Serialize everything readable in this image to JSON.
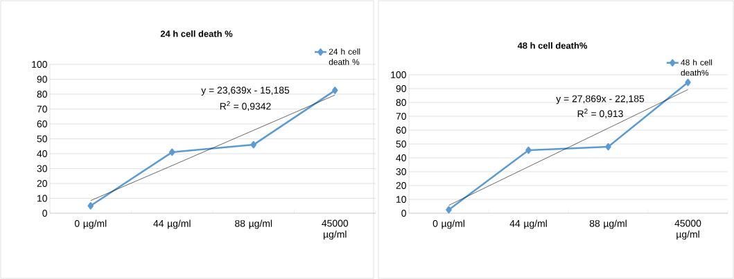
{
  "chart_data": [
    {
      "type": "line",
      "title": "24 h cell death %",
      "categories": [
        "0  µg/ml",
        "44 µg/ml",
        "88 µg/ml",
        "45000 µg/ml"
      ],
      "series": [
        {
          "name": "24 h cell death %",
          "color": "#5b9bd5",
          "values": [
            5,
            41,
            46,
            82.5
          ]
        },
        {
          "color": "#000000",
          "values": [
            8.5,
            32,
            55.7,
            79.4
          ],
          "marker": "none"
        }
      ],
      "ylim": [
        0,
        100
      ],
      "yticks": [
        0,
        10,
        20,
        30,
        40,
        50,
        60,
        70,
        80,
        90,
        100
      ],
      "grid": "y",
      "legend": "top right",
      "marker": "diamond",
      "annotations": [
        "y = 23,639x - 15,185",
        "R$^{2}$ = 0,9342"
      ]
    },
    {
      "type": "line",
      "title": "48 h cell death%",
      "categories": [
        "0  µg/ml",
        "44 µg/ml",
        "88 µg/ml",
        "45000 µg/ml"
      ],
      "series": [
        {
          "name": "48 h cell death%",
          "color": "#5b9bd5",
          "values": [
            2.5,
            45.5,
            48,
            94.5
          ]
        },
        {
          "color": "#000000",
          "values": [
            5.7,
            33.6,
            61.4,
            89.3
          ],
          "marker": "none"
        }
      ],
      "ylim": [
        0,
        100
      ],
      "yticks": [
        0,
        10,
        20,
        30,
        40,
        50,
        60,
        70,
        80,
        90,
        100
      ],
      "grid": "y",
      "legend": "top right",
      "marker": "diamond",
      "annotations": [
        "y = 27,869x - 22,185",
        "R$^{2}$ = 0,913"
      ]
    }
  ]
}
